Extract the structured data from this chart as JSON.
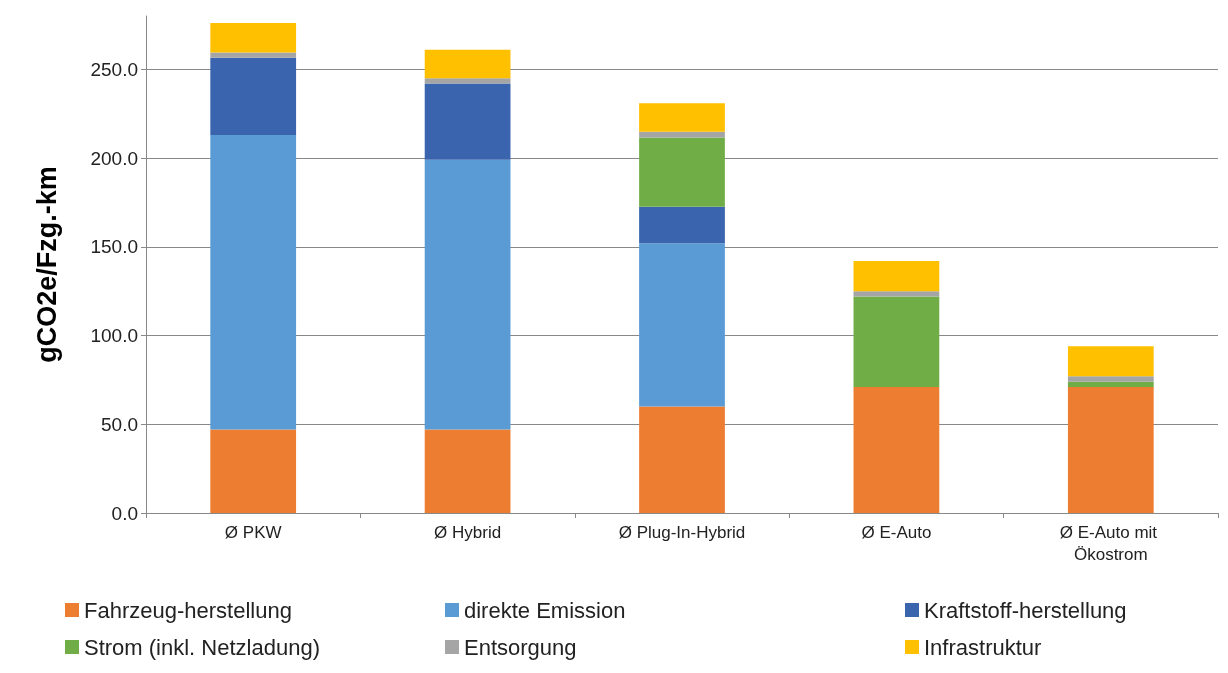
{
  "chart_data": {
    "type": "bar",
    "stacked": true,
    "ylabel": "gCO2e/Fzg.-km",
    "categories": [
      "Ø PKW",
      "Ø Hybrid",
      "Ø Plug-In-Hybrid",
      "Ø E-Auto",
      "Ø E-Auto mit Ökostrom"
    ],
    "series": [
      {
        "name": "Fahrzeug-herstellung",
        "color": "#ed7d31",
        "values": [
          47,
          47,
          60,
          71,
          71
        ]
      },
      {
        "name": "direkte Emission",
        "color": "#5b9bd5",
        "values": [
          166,
          152,
          92,
          0,
          0
        ]
      },
      {
        "name": "Kraftstoff-herstellung",
        "color": "#3a64ad",
        "values": [
          43.5,
          43,
          20.5,
          0,
          0
        ]
      },
      {
        "name": "Strom (inkl. Netzladung)",
        "color": "#70ad47",
        "values": [
          0,
          0,
          39,
          51,
          3
        ]
      },
      {
        "name": "Entsorgung",
        "color": "#a5a5a5",
        "values": [
          3,
          3,
          3.3,
          3,
          3
        ]
      },
      {
        "name": "Infrastruktur",
        "color": "#ffc000",
        "values": [
          16.5,
          16,
          16,
          17,
          17
        ]
      }
    ],
    "ylim": [
      0,
      280
    ],
    "yticks": [
      {
        "value": 0,
        "label": "0.0"
      },
      {
        "value": 50,
        "label": "50.0"
      },
      {
        "value": 100,
        "label": "100.0"
      },
      {
        "value": 150,
        "label": "150.0"
      },
      {
        "value": 200,
        "label": "200.0"
      },
      {
        "value": 250,
        "label": "250.0"
      }
    ],
    "grid": "y",
    "legend": "bottom"
  }
}
